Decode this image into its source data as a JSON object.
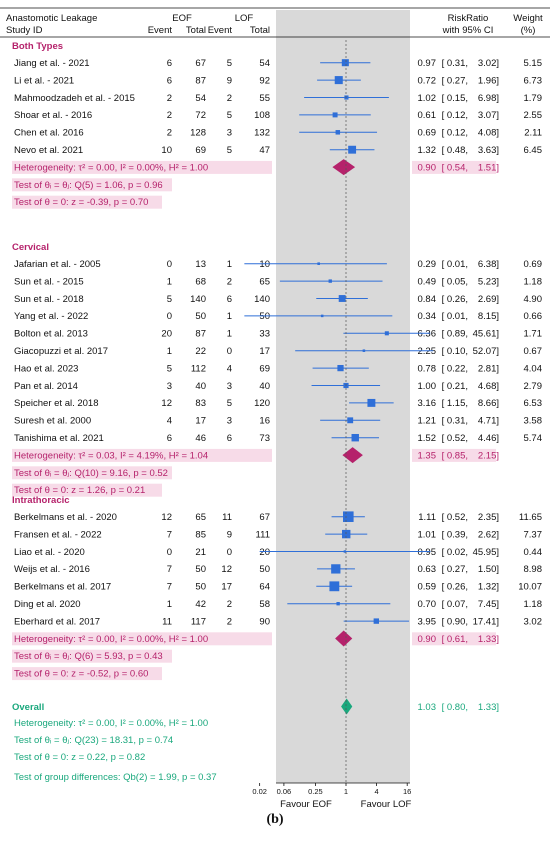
{
  "caption": "(b)",
  "chart_data": {
    "type": "forest",
    "header": {
      "study_line1": "Anastomotic Leakage",
      "study_line2": "Study ID",
      "group_a": "EOF",
      "group_b": "LOF",
      "event": "Event",
      "total": "Total",
      "effect_line1": "RiskRatio",
      "effect_line2": "with 95% CI",
      "weight_line1": "Weight",
      "weight_line2": "(%)"
    },
    "x_axis": {
      "scale": "log2",
      "ticks": [
        0.02,
        0.06,
        0.25,
        1,
        4,
        16
      ],
      "tick_labels": [
        "0.02",
        "0.06",
        "0.25",
        "1",
        "4",
        "16"
      ],
      "left_label": "Favour EOF",
      "right_label": "Favour LOF",
      "reference": 1
    },
    "colors": {
      "subgroup": "#b5226b",
      "overall": "#1aa87d",
      "marker": "#2f6fd8",
      "panel": "#d9d9d9",
      "highlight": "#f7dbe8"
    },
    "subgroups": [
      {
        "name": "Both Types",
        "studies": [
          {
            "study": "Jiang et al. - 2021",
            "e1": 6,
            "n1": 67,
            "e2": 5,
            "n2": 54,
            "rr": 0.97,
            "lo": 0.31,
            "hi": 3.02,
            "weight": 5.15
          },
          {
            "study": "Li et al. - 2021",
            "e1": 6,
            "n1": 87,
            "e2": 9,
            "n2": 92,
            "rr": 0.72,
            "lo": 0.27,
            "hi": 1.96,
            "weight": 6.73
          },
          {
            "study": "Mahmoodzadeh et al. - 2015",
            "e1": 2,
            "n1": 54,
            "e2": 2,
            "n2": 55,
            "rr": 1.02,
            "lo": 0.15,
            "hi": 6.98,
            "weight": 1.79
          },
          {
            "study": "Shoar et al. - 2016",
            "e1": 2,
            "n1": 72,
            "e2": 5,
            "n2": 108,
            "rr": 0.61,
            "lo": 0.12,
            "hi": 3.07,
            "weight": 2.55
          },
          {
            "study": "Chen et al. 2016",
            "e1": 2,
            "n1": 128,
            "e2": 3,
            "n2": 132,
            "rr": 0.69,
            "lo": 0.12,
            "hi": 4.08,
            "weight": 2.11
          },
          {
            "study": "Nevo et al. 2021",
            "e1": 10,
            "n1": 69,
            "e2": 5,
            "n2": 47,
            "rr": 1.32,
            "lo": 0.48,
            "hi": 3.63,
            "weight": 6.45
          }
        ],
        "heterogeneity": "Heterogeneity: τ² = 0.00, I² = 0.00%, H² = 1.00",
        "pooled": {
          "rr": 0.9,
          "lo": 0.54,
          "hi": 1.51
        },
        "test_homogeneity": "Test of θᵢ = θⱼ: Q(5) = 1.06, p = 0.96",
        "test_effect": "Test of θ = 0: z = -0.39, p = 0.70"
      },
      {
        "name": "Cervical",
        "studies": [
          {
            "study": "Jafarian et al. - 2005",
            "e1": 0,
            "n1": 13,
            "e2": 1,
            "n2": 10,
            "rr": 0.29,
            "lo": 0.01,
            "hi": 6.38,
            "weight": 0.69
          },
          {
            "study": "Sun et al. - 2015",
            "e1": 1,
            "n1": 68,
            "e2": 2,
            "n2": 65,
            "rr": 0.49,
            "lo": 0.05,
            "hi": 5.23,
            "weight": 1.18
          },
          {
            "study": "Sun et al. - 2018",
            "e1": 5,
            "n1": 140,
            "e2": 6,
            "n2": 140,
            "rr": 0.84,
            "lo": 0.26,
            "hi": 2.69,
            "weight": 4.9
          },
          {
            "study": "Yang et al. - 2022",
            "e1": 0,
            "n1": 50,
            "e2": 1,
            "n2": 50,
            "rr": 0.34,
            "lo": 0.01,
            "hi": 8.15,
            "weight": 0.66
          },
          {
            "study": "Bolton et al. 2013",
            "e1": 20,
            "n1": 87,
            "e2": 1,
            "n2": 33,
            "rr": 6.36,
            "lo": 0.89,
            "hi": 45.61,
            "weight": 1.71
          },
          {
            "study": "Giacopuzzi et al. 2017",
            "e1": 1,
            "n1": 22,
            "e2": 0,
            "n2": 17,
            "rr": 2.25,
            "lo": 0.1,
            "hi": 52.07,
            "weight": 0.67
          },
          {
            "study": "Hao et al. 2023",
            "e1": 5,
            "n1": 112,
            "e2": 4,
            "n2": 69,
            "rr": 0.78,
            "lo": 0.22,
            "hi": 2.81,
            "weight": 4.04
          },
          {
            "study": "Pan et al. 2014",
            "e1": 3,
            "n1": 40,
            "e2": 3,
            "n2": 40,
            "rr": 1.0,
            "lo": 0.21,
            "hi": 4.68,
            "weight": 2.79
          },
          {
            "study": "Speicher et al. 2018",
            "e1": 12,
            "n1": 83,
            "e2": 5,
            "n2": 120,
            "rr": 3.16,
            "lo": 1.15,
            "hi": 8.66,
            "weight": 6.53
          },
          {
            "study": "Suresh et al. 2000",
            "e1": 4,
            "n1": 17,
            "e2": 3,
            "n2": 16,
            "rr": 1.21,
            "lo": 0.31,
            "hi": 4.71,
            "weight": 3.58
          },
          {
            "study": "Tanishima et al. 2021",
            "e1": 6,
            "n1": 46,
            "e2": 6,
            "n2": 73,
            "rr": 1.52,
            "lo": 0.52,
            "hi": 4.46,
            "weight": 5.74
          }
        ],
        "heterogeneity": "Heterogeneity: τ² = 0.03, I² = 4.19%, H² = 1.04",
        "pooled": {
          "rr": 1.35,
          "lo": 0.85,
          "hi": 2.15
        },
        "test_homogeneity": "Test of θᵢ = θⱼ: Q(10) = 9.16, p = 0.52",
        "test_effect": "Test of θ = 0: z = 1.26, p = 0.21"
      },
      {
        "name": "Intrathoracic",
        "studies": [
          {
            "study": "Berkelmans et al. - 2020",
            "e1": 12,
            "n1": 65,
            "e2": 11,
            "n2": 67,
            "rr": 1.11,
            "lo": 0.52,
            "hi": 2.35,
            "weight": 11.65
          },
          {
            "study": "Fransen et al. - 2022",
            "e1": 7,
            "n1": 85,
            "e2": 9,
            "n2": 111,
            "rr": 1.01,
            "lo": 0.39,
            "hi": 2.62,
            "weight": 7.37
          },
          {
            "study": "Liao et al. - 2020",
            "e1": 0,
            "n1": 21,
            "e2": 0,
            "n2": 20,
            "rr": 0.95,
            "lo": 0.02,
            "hi": 45.95,
            "weight": 0.44
          },
          {
            "study": "Weijs et al. - 2016",
            "e1": 7,
            "n1": 50,
            "e2": 12,
            "n2": 50,
            "rr": 0.63,
            "lo": 0.27,
            "hi": 1.5,
            "weight": 8.98
          },
          {
            "study": "Berkelmans et al. 2017",
            "e1": 7,
            "n1": 50,
            "e2": 17,
            "n2": 64,
            "rr": 0.59,
            "lo": 0.26,
            "hi": 1.32,
            "weight": 10.07
          },
          {
            "study": "Ding et al. 2020",
            "e1": 1,
            "n1": 42,
            "e2": 2,
            "n2": 58,
            "rr": 0.7,
            "lo": 0.07,
            "hi": 7.45,
            "weight": 1.18
          },
          {
            "study": "Eberhard et al. 2017",
            "e1": 11,
            "n1": 117,
            "e2": 2,
            "n2": 90,
            "rr": 3.95,
            "lo": 0.9,
            "hi": 17.41,
            "weight": 3.02
          }
        ],
        "heterogeneity": "Heterogeneity: τ² = 0.00, I² = 0.00%, H² = 1.00",
        "pooled": {
          "rr": 0.9,
          "lo": 0.61,
          "hi": 1.33
        },
        "test_homogeneity": "Test of θᵢ = θⱼ: Q(6) = 5.93, p = 0.43",
        "test_effect": "Test of θ = 0: z = -0.52, p = 0.60"
      }
    ],
    "overall": {
      "label": "Overall",
      "heterogeneity": "Heterogeneity: τ² = 0.00, I² = 0.00%, H² = 1.00",
      "rr": 1.03,
      "lo": 0.8,
      "hi": 1.33,
      "test_homogeneity": "Test of θᵢ = θⱼ: Q(23) = 18.31, p = 0.74",
      "test_effect": "Test of θ = 0: z = 0.22, p = 0.82",
      "test_groups": "Test of group differences: Qb(2) = 1.99, p = 0.37"
    }
  }
}
